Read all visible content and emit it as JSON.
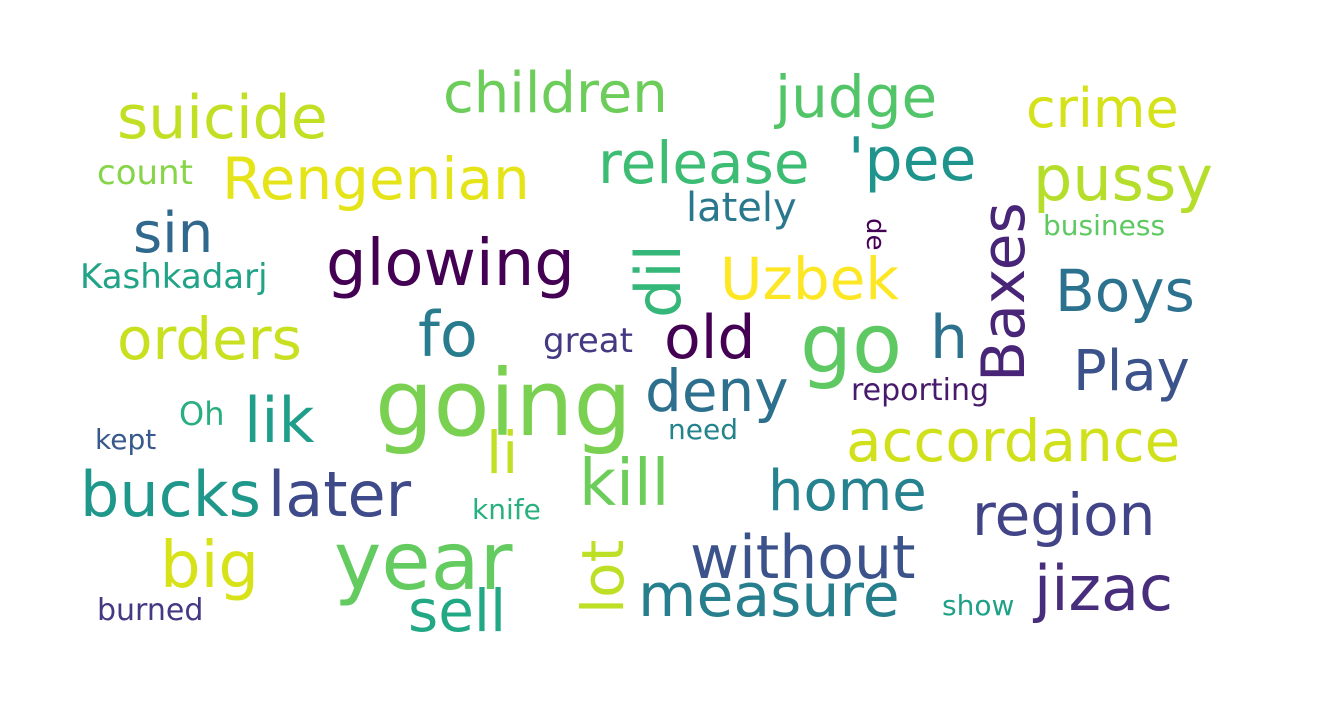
{
  "words": [
    {
      "key": "suicide",
      "text": "suicide",
      "color": "#c2df23"
    },
    {
      "key": "children",
      "text": "children",
      "color": "#6ccd5a"
    },
    {
      "key": "judge",
      "text": "judge",
      "color": "#52c569"
    },
    {
      "key": "crime",
      "text": "crime",
      "color": "#d5e21a"
    },
    {
      "key": "count",
      "text": "count",
      "color": "#86d549"
    },
    {
      "key": "rengenian",
      "text": "Rengenian",
      "color": "#e5e419"
    },
    {
      "key": "release",
      "text": "release",
      "color": "#3dbc74"
    },
    {
      "key": "pee",
      "text": "'pee",
      "color": "#1f948c"
    },
    {
      "key": "pussy",
      "text": "pussy",
      "color": "#b5de2b"
    },
    {
      "key": "lately",
      "text": "lately",
      "color": "#2a788e"
    },
    {
      "key": "de",
      "text": "de",
      "color": "#440154"
    },
    {
      "key": "business",
      "text": "business",
      "color": "#5ec962"
    },
    {
      "key": "sin",
      "text": "sin",
      "color": "#31688e"
    },
    {
      "key": "glowing",
      "text": "glowing",
      "color": "#440154"
    },
    {
      "key": "dil",
      "text": "dil",
      "color": "#35b779"
    },
    {
      "key": "uzbek",
      "text": "Uzbek",
      "color": "#fde725"
    },
    {
      "key": "baxes",
      "text": "Baxes",
      "color": "#482576"
    },
    {
      "key": "boys",
      "text": "Boys",
      "color": "#2c728e"
    },
    {
      "key": "kashkadarj",
      "text": "Kashkadarj",
      "color": "#20a386"
    },
    {
      "key": "orders",
      "text": "orders",
      "color": "#c8e020"
    },
    {
      "key": "fo",
      "text": "fo",
      "color": "#287c8e"
    },
    {
      "key": "great",
      "text": "great",
      "color": "#443a83"
    },
    {
      "key": "old",
      "text": "old",
      "color": "#440154"
    },
    {
      "key": "go",
      "text": "go",
      "color": "#5ec962"
    },
    {
      "key": "h",
      "text": "h",
      "color": "#2c728e"
    },
    {
      "key": "play",
      "text": "Play",
      "color": "#3b528b"
    },
    {
      "key": "going",
      "text": "going",
      "color": "#7ad151"
    },
    {
      "key": "deny",
      "text": "deny",
      "color": "#2d708e"
    },
    {
      "key": "reporting",
      "text": "reporting",
      "color": "#481a6c"
    },
    {
      "key": "oh",
      "text": "Oh",
      "color": "#29af7f"
    },
    {
      "key": "lik",
      "text": "lik",
      "color": "#1f9e89"
    },
    {
      "key": "kept",
      "text": "kept",
      "color": "#38598c"
    },
    {
      "key": "need",
      "text": "need",
      "color": "#25838e"
    },
    {
      "key": "accordance",
      "text": "accordance",
      "color": "#d0e11c"
    },
    {
      "key": "li",
      "text": "li",
      "color": "#c2df23"
    },
    {
      "key": "kill",
      "text": "kill",
      "color": "#6ccd5a"
    },
    {
      "key": "bucks",
      "text": "bucks",
      "color": "#1f988b"
    },
    {
      "key": "later",
      "text": "later",
      "color": "#3e4a89"
    },
    {
      "key": "home",
      "text": "home",
      "color": "#26828e"
    },
    {
      "key": "region",
      "text": "region",
      "color": "#414487"
    },
    {
      "key": "knife",
      "text": "knife",
      "color": "#2ab07f"
    },
    {
      "key": "big",
      "text": "big",
      "color": "#d8e219"
    },
    {
      "key": "year",
      "text": "year",
      "color": "#63cb5f"
    },
    {
      "key": "lot",
      "text": "lot",
      "color": "#bddf26"
    },
    {
      "key": "without",
      "text": "without",
      "color": "#3b528b"
    },
    {
      "key": "measure",
      "text": "measure",
      "color": "#277f8e"
    },
    {
      "key": "jizac",
      "text": "jizac",
      "color": "#472d7b"
    },
    {
      "key": "sell",
      "text": "sell",
      "color": "#22a884"
    },
    {
      "key": "show",
      "text": "show",
      "color": "#1fa188"
    },
    {
      "key": "burned",
      "text": "burned",
      "color": "#443983"
    }
  ]
}
